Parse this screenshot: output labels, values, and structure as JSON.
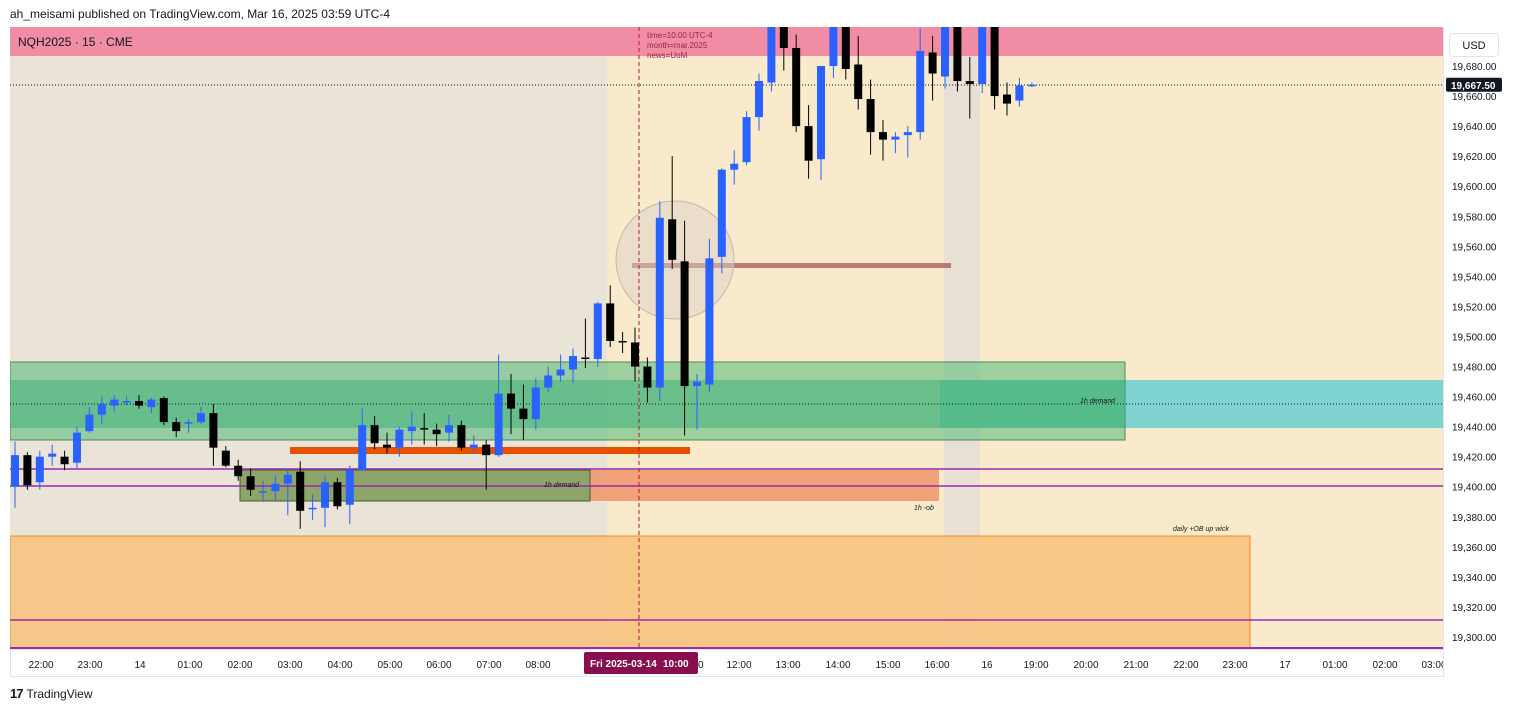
{
  "header": {
    "published_line": "ah_meisami published on TradingView.com, Mar 16, 2025 03:59 UTC-4"
  },
  "symbol": {
    "label": "NQH2025 · 15 · CME"
  },
  "currency_button": {
    "label": "USD"
  },
  "footer": {
    "logo_mark": "17",
    "brand": "TradingView"
  },
  "colors": {
    "bull": "#2962ff",
    "bear": "#000000",
    "top_band": "#f08ca3",
    "demand_green": "#5dbb7e",
    "demand_cyan": "#7fd4d1",
    "ob_orange": "#f0a070",
    "daily_orange": "#f8c27a",
    "purple_line": "#9c27b0",
    "orange_line": "#e65100",
    "session_bg": "#faeacc",
    "pre_session_bg": "#e9e3d8"
  },
  "chart_data": {
    "type": "candlestick",
    "price_scale": {
      "ticks": [
        "19,680.00",
        "19,660.00",
        "19,640.00",
        "19,620.00",
        "19,600.00",
        "19,580.00",
        "19,560.00",
        "19,540.00",
        "19,520.00",
        "19,500.00",
        "19,480.00",
        "19,460.00",
        "19,440.00",
        "19,420.00",
        "19,400.00",
        "19,380.00",
        "19,360.00",
        "19,340.00",
        "19,320.00",
        "19,300.00"
      ],
      "current_price": "19,667.50"
    },
    "time_axis": {
      "ticks": [
        "22:00",
        "23:00",
        "14",
        "01:00",
        "02:00",
        "03:00",
        "04:00",
        "05:00",
        "06:00",
        "07:00",
        "08:00",
        "",
        "12:00",
        "13:00",
        "14:00",
        "15:00",
        "16:00",
        "16",
        "19:00",
        "20:00",
        "21:00",
        "22:00",
        "23:00",
        "17",
        "01:00",
        "02:00",
        "03:00"
      ],
      "highlight_date": "Fri 2025-03-14",
      "highlight_time": "10:00",
      "highlight_tail": "0"
    },
    "annotation": {
      "lines": [
        "time=10:00 UTC-4",
        "month=mar.2025",
        "news=UoM"
      ]
    },
    "zone_labels": {
      "demand_1h_right": "1h demand",
      "demand_1h_left": "1h demand",
      "ob_1h": "1h -ob",
      "daily_ob": "daily +OB up wick"
    },
    "zones": [
      {
        "name": "top_band",
        "y_top": 19700,
        "y_bottom": 19687
      },
      {
        "name": "1h_demand_big",
        "y_top": 19483,
        "y_bottom": 19431
      },
      {
        "name": "1h_demand_cyan",
        "y_top": 19472,
        "y_bottom": 19439
      },
      {
        "name": "1h_demand_small",
        "y_top": 19411,
        "y_bottom": 19391
      },
      {
        "name": "1h_ob",
        "y_top": 19411,
        "y_bottom": 19391
      },
      {
        "name": "daily_ob_up_wick",
        "y_top": 19367,
        "y_bottom": 19293
      }
    ],
    "levels": {
      "purple": [
        19412,
        19401,
        19312,
        19293
      ],
      "orange": 19424,
      "brown": 19547,
      "dotted_current": 19667.5,
      "dotted_mid": 19455
    },
    "candles": [
      {
        "o": 19400,
        "h": 19430,
        "l": 19386,
        "c": 19421
      },
      {
        "o": 19421,
        "h": 19423,
        "l": 19398,
        "c": 19401
      },
      {
        "o": 19403,
        "h": 19424,
        "l": 19398,
        "c": 19420
      },
      {
        "o": 19420,
        "h": 19428,
        "l": 19414,
        "c": 19422
      },
      {
        "o": 19420,
        "h": 19424,
        "l": 19411,
        "c": 19415
      },
      {
        "o": 19416,
        "h": 19440,
        "l": 19412,
        "c": 19436
      },
      {
        "o": 19437,
        "h": 19453,
        "l": 19436,
        "c": 19448
      },
      {
        "o": 19448,
        "h": 19460,
        "l": 19442,
        "c": 19455
      },
      {
        "o": 19454,
        "h": 19461,
        "l": 19450,
        "c": 19458
      },
      {
        "o": 19457,
        "h": 19460,
        "l": 19454,
        "c": 19457
      },
      {
        "o": 19457,
        "h": 19461,
        "l": 19452,
        "c": 19454
      },
      {
        "o": 19453,
        "h": 19459,
        "l": 19449,
        "c": 19458
      },
      {
        "o": 19459,
        "h": 19460,
        "l": 19441,
        "c": 19443
      },
      {
        "o": 19443,
        "h": 19446,
        "l": 19433,
        "c": 19437
      },
      {
        "o": 19442,
        "h": 19445,
        "l": 19436,
        "c": 19443
      },
      {
        "o": 19443,
        "h": 19453,
        "l": 19442,
        "c": 19449
      },
      {
        "o": 19449,
        "h": 19455,
        "l": 19414,
        "c": 19426
      },
      {
        "o": 19424,
        "h": 19427,
        "l": 19413,
        "c": 19414
      },
      {
        "o": 19414,
        "h": 19418,
        "l": 19404,
        "c": 19407
      },
      {
        "o": 19407,
        "h": 19412,
        "l": 19394,
        "c": 19398
      },
      {
        "o": 19397,
        "h": 19404,
        "l": 19390,
        "c": 19397
      },
      {
        "o": 19397,
        "h": 19407,
        "l": 19391,
        "c": 19402
      },
      {
        "o": 19402,
        "h": 19412,
        "l": 19381,
        "c": 19408
      },
      {
        "o": 19410,
        "h": 19417,
        "l": 19372,
        "c": 19384
      },
      {
        "o": 19385,
        "h": 19395,
        "l": 19378,
        "c": 19386
      },
      {
        "o": 19386,
        "h": 19407,
        "l": 19373,
        "c": 19403
      },
      {
        "o": 19403,
        "h": 19406,
        "l": 19385,
        "c": 19387
      },
      {
        "o": 19388,
        "h": 19414,
        "l": 19375,
        "c": 19411
      },
      {
        "o": 19411,
        "h": 19452,
        "l": 19411,
        "c": 19441
      },
      {
        "o": 19441,
        "h": 19447,
        "l": 19425,
        "c": 19429
      },
      {
        "o": 19428,
        "h": 19436,
        "l": 19422,
        "c": 19426
      },
      {
        "o": 19426,
        "h": 19440,
        "l": 19420,
        "c": 19438
      },
      {
        "o": 19437,
        "h": 19450,
        "l": 19428,
        "c": 19440
      },
      {
        "o": 19439,
        "h": 19449,
        "l": 19428,
        "c": 19438
      },
      {
        "o": 19438,
        "h": 19442,
        "l": 19427,
        "c": 19435
      },
      {
        "o": 19436,
        "h": 19448,
        "l": 19430,
        "c": 19441
      },
      {
        "o": 19441,
        "h": 19444,
        "l": 19424,
        "c": 19426
      },
      {
        "o": 19426,
        "h": 19434,
        "l": 19422,
        "c": 19428
      },
      {
        "o": 19428,
        "h": 19431,
        "l": 19398,
        "c": 19421
      },
      {
        "o": 19421,
        "h": 19488,
        "l": 19420,
        "c": 19462
      },
      {
        "o": 19462,
        "h": 19475,
        "l": 19435,
        "c": 19452
      },
      {
        "o": 19452,
        "h": 19468,
        "l": 19431,
        "c": 19445
      },
      {
        "o": 19445,
        "h": 19472,
        "l": 19438,
        "c": 19466
      },
      {
        "o": 19466,
        "h": 19480,
        "l": 19463,
        "c": 19474
      },
      {
        "o": 19474,
        "h": 19488,
        "l": 19470,
        "c": 19478
      },
      {
        "o": 19478,
        "h": 19492,
        "l": 19469,
        "c": 19487
      },
      {
        "o": 19486,
        "h": 19512,
        "l": 19479,
        "c": 19485
      },
      {
        "o": 19485,
        "h": 19523,
        "l": 19480,
        "c": 19522
      },
      {
        "o": 19522,
        "h": 19534,
        "l": 19493,
        "c": 19497
      },
      {
        "o": 19497,
        "h": 19503,
        "l": 19489,
        "c": 19496
      },
      {
        "o": 19496,
        "h": 19506,
        "l": 19470,
        "c": 19480
      },
      {
        "o": 19480,
        "h": 19486,
        "l": 19456,
        "c": 19466
      },
      {
        "o": 19466,
        "h": 19590,
        "l": 19457,
        "c": 19579
      },
      {
        "o": 19578,
        "h": 19620,
        "l": 19545,
        "c": 19551
      },
      {
        "o": 19550,
        "h": 19577,
        "l": 19434,
        "c": 19467
      },
      {
        "o": 19467,
        "h": 19475,
        "l": 19438,
        "c": 19470
      },
      {
        "o": 19468,
        "h": 19565,
        "l": 19463,
        "c": 19552
      },
      {
        "o": 19553,
        "h": 19612,
        "l": 19542,
        "c": 19611
      },
      {
        "o": 19611,
        "h": 19624,
        "l": 19601,
        "c": 19615
      },
      {
        "o": 19616,
        "h": 19650,
        "l": 19614,
        "c": 19646
      },
      {
        "o": 19646,
        "h": 19675,
        "l": 19637,
        "c": 19670
      },
      {
        "o": 19669,
        "h": 19730,
        "l": 19663,
        "c": 19715
      },
      {
        "o": 19716,
        "h": 19730,
        "l": 19677,
        "c": 19692
      },
      {
        "o": 19692,
        "h": 19701,
        "l": 19636,
        "c": 19640
      },
      {
        "o": 19640,
        "h": 19654,
        "l": 19605,
        "c": 19617
      },
      {
        "o": 19618,
        "h": 19679,
        "l": 19604,
        "c": 19680
      },
      {
        "o": 19680,
        "h": 19740,
        "l": 19672,
        "c": 19725
      },
      {
        "o": 19726,
        "h": 19732,
        "l": 19671,
        "c": 19678
      },
      {
        "o": 19681,
        "h": 19700,
        "l": 19651,
        "c": 19658
      },
      {
        "o": 19658,
        "h": 19671,
        "l": 19621,
        "c": 19636
      },
      {
        "o": 19636,
        "h": 19644,
        "l": 19617,
        "c": 19631
      },
      {
        "o": 19631,
        "h": 19636,
        "l": 19622,
        "c": 19633
      },
      {
        "o": 19634,
        "h": 19640,
        "l": 19619,
        "c": 19636
      },
      {
        "o": 19636,
        "h": 19705,
        "l": 19631,
        "c": 19690
      },
      {
        "o": 19689,
        "h": 19700,
        "l": 19657,
        "c": 19675
      },
      {
        "o": 19673,
        "h": 19727,
        "l": 19665,
        "c": 19710
      },
      {
        "o": 19710,
        "h": 19722,
        "l": 19663,
        "c": 19670
      },
      {
        "o": 19670,
        "h": 19686,
        "l": 19645,
        "c": 19668
      },
      {
        "o": 19668,
        "h": 19730,
        "l": 19662,
        "c": 19715
      },
      {
        "o": 19715,
        "h": 19728,
        "l": 19651,
        "c": 19660
      },
      {
        "o": 19661,
        "h": 19669,
        "l": 19647,
        "c": 19655
      },
      {
        "o": 19657,
        "h": 19672,
        "l": 19653,
        "c": 19667
      },
      {
        "o": 19667,
        "h": 19669,
        "l": 19666,
        "c": 19667.5
      }
    ]
  }
}
